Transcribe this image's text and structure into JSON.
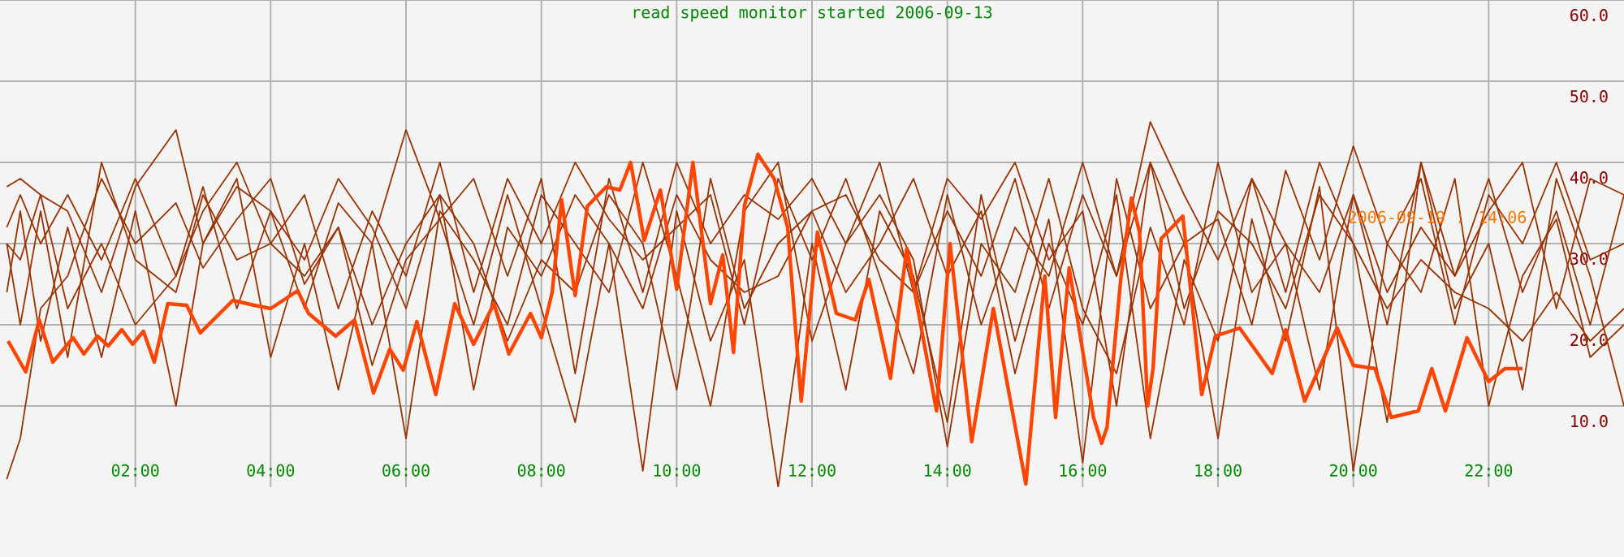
{
  "chart_data": {
    "type": "line",
    "title": "read speed monitor started 2006-09-13",
    "annotations": [
      "2006-09-19 : 14:06"
    ],
    "x": [
      0.1,
      0.3,
      0.6,
      1.0,
      1.5,
      2.0,
      2.6,
      3.0,
      3.5,
      4.0,
      4.5,
      5.0,
      5.5,
      6.0,
      6.5,
      7.0,
      7.5,
      8.0,
      8.5,
      9.0,
      9.5,
      10.0,
      10.5,
      11.0,
      11.5,
      12.0,
      12.5,
      13.0,
      13.5,
      14.0,
      14.5,
      15.0,
      15.5,
      16.0,
      16.5,
      17.0,
      17.5,
      18.0,
      18.5,
      19.0,
      19.5,
      20.0,
      20.5,
      21.0,
      21.5,
      22.0,
      22.5,
      23.0,
      23.5,
      24.0
    ],
    "series": [
      {
        "color": "#993300",
        "values": [
          1,
          6,
          22,
          26,
          38,
          30,
          35,
          27,
          33,
          38,
          25,
          32,
          15,
          28,
          33,
          20,
          36,
          22,
          8,
          30,
          2,
          34,
          18,
          28,
          0,
          30,
          12,
          34,
          26,
          8,
          36,
          18,
          33,
          3,
          38,
          22,
          30,
          6,
          33,
          18,
          37,
          2,
          30,
          24,
          38,
          10,
          26,
          33,
          16,
          20
        ]
      },
      {
        "color": "#993300",
        "values": [
          37,
          38,
          36,
          34,
          24,
          37,
          44,
          30,
          37,
          34,
          22,
          35,
          30,
          44,
          33,
          38,
          26,
          38,
          14,
          38,
          24,
          40,
          30,
          36,
          33,
          38,
          30,
          40,
          24,
          38,
          33,
          40,
          28,
          34,
          10,
          40,
          30,
          33,
          20,
          39,
          28,
          42,
          30,
          38,
          20,
          36,
          30,
          40,
          28,
          30
        ]
      },
      {
        "color": "#993300",
        "values": [
          30,
          20,
          34,
          16,
          40,
          28,
          24,
          36,
          28,
          30,
          36,
          22,
          34,
          26,
          40,
          24,
          38,
          30,
          40,
          33,
          28,
          32,
          36,
          20,
          38,
          28,
          38,
          26,
          14,
          36,
          20,
          32,
          26,
          40,
          26,
          45,
          36,
          28,
          38,
          24,
          40,
          30,
          8,
          40,
          26,
          34,
          40,
          22,
          38,
          36
        ]
      },
      {
        "color": "#993300",
        "values": [
          24,
          34,
          18,
          32,
          16,
          34,
          10,
          30,
          38,
          16,
          30,
          12,
          30,
          6,
          34,
          28,
          20,
          36,
          30,
          24,
          40,
          26,
          10,
          34,
          40,
          18,
          30,
          36,
          28,
          5,
          30,
          24,
          38,
          22,
          14,
          32,
          20,
          40,
          24,
          30,
          12,
          36,
          20,
          40,
          22,
          30,
          12,
          38,
          26,
          10
        ]
      },
      {
        "color": "#993300",
        "values": [
          30,
          28,
          36,
          22,
          30,
          20,
          26,
          37,
          22,
          34,
          28,
          38,
          32,
          22,
          36,
          30,
          18,
          28,
          24,
          36,
          30,
          12,
          38,
          22,
          30,
          34,
          24,
          30,
          38,
          26,
          34,
          14,
          30,
          20,
          36,
          6,
          28,
          18,
          38,
          30,
          24,
          36,
          24,
          32,
          26,
          38,
          24,
          34,
          20,
          36
        ]
      },
      {
        "color": "#993300",
        "values": [
          32,
          36,
          30,
          36,
          28,
          38,
          26,
          34,
          40,
          30,
          26,
          32,
          20,
          30,
          36,
          12,
          32,
          26,
          36,
          30,
          22,
          36,
          28,
          24,
          26,
          34,
          36,
          28,
          24,
          34,
          26,
          38,
          22,
          36,
          26,
          40,
          22,
          34,
          30,
          22,
          36,
          30,
          22,
          28,
          24,
          22,
          18,
          24,
          18,
          22
        ]
      },
      {
        "color": "#ff4500",
        "x": [
          0.12,
          0.38,
          0.58,
          0.78,
          1.08,
          1.24,
          1.44,
          1.6,
          1.8,
          1.96,
          2.12,
          2.28,
          2.48,
          2.76,
          2.96,
          3.44,
          3.76,
          4.0,
          4.4,
          4.56,
          4.96,
          5.24,
          5.52,
          5.76,
          5.96,
          6.16,
          6.44,
          6.72,
          7.0,
          7.3,
          7.52,
          7.84,
          8.0,
          8.16,
          8.3,
          8.5,
          8.68,
          8.96,
          9.16,
          9.32,
          9.52,
          9.76,
          10.0,
          10.24,
          10.5,
          10.68,
          10.84,
          11.0,
          11.2,
          11.44,
          11.64,
          11.84,
          12.08,
          12.36,
          12.64,
          12.84,
          13.16,
          13.4,
          13.84,
          14.04,
          14.36,
          14.68,
          15.16,
          15.44,
          15.6,
          15.8,
          16.16,
          16.28,
          16.36,
          16.56,
          16.72,
          16.84,
          16.96,
          17.04,
          17.16,
          17.48,
          17.76,
          17.96,
          18.32,
          18.8,
          19.0,
          19.28,
          19.76,
          20.0,
          20.32,
          20.56,
          20.96,
          21.16,
          21.36,
          21.68,
          22.0,
          22.24,
          22.5
        ],
        "values": [
          18,
          14.2,
          20.6,
          15.4,
          18.4,
          16.4,
          18.6,
          17.4,
          19.4,
          17.6,
          19.2,
          15.4,
          22.6,
          22.4,
          19,
          23,
          22.4,
          22,
          24.2,
          21.4,
          18.6,
          20.6,
          11.6,
          17,
          14.4,
          20.4,
          11.4,
          22.6,
          17.6,
          22.6,
          16.4,
          21.4,
          18.4,
          24,
          35.4,
          23.6,
          34.6,
          37,
          36.6,
          40,
          30.4,
          36.6,
          24.4,
          40,
          22.6,
          28.6,
          16.6,
          34.6,
          41,
          38,
          32,
          10.6,
          31.4,
          21.4,
          20.6,
          25.6,
          13.4,
          29.4,
          9.4,
          30,
          5.6,
          22,
          0.4,
          26,
          8.6,
          27,
          8.6,
          5.4,
          7.4,
          25.4,
          35.6,
          31.4,
          10,
          14.6,
          30.6,
          33.4,
          11.4,
          18.6,
          19.6,
          14,
          19.4,
          10.6,
          19.6,
          15,
          14.6,
          8.6,
          9.4,
          14.6,
          9.4,
          18.4,
          13,
          14.6,
          14.6
        ]
      }
    ],
    "xlim": [
      0,
      24
    ],
    "ylim": [
      0,
      60
    ],
    "xticks": [
      {
        "value": 2,
        "label": "02:00"
      },
      {
        "value": 4,
        "label": "04:00"
      },
      {
        "value": 6,
        "label": "06:00"
      },
      {
        "value": 8,
        "label": "08:00"
      },
      {
        "value": 10,
        "label": "10:00"
      },
      {
        "value": 12,
        "label": "12:00"
      },
      {
        "value": 14,
        "label": "14:00"
      },
      {
        "value": 16,
        "label": "16:00"
      },
      {
        "value": 18,
        "label": "18:00"
      },
      {
        "value": 20,
        "label": "20:00"
      },
      {
        "value": 22,
        "label": "22:00"
      }
    ],
    "yticks": [
      {
        "value": 10,
        "label": "10.0"
      },
      {
        "value": 20,
        "label": "20.0"
      },
      {
        "value": 30,
        "label": "30.0"
      },
      {
        "value": 40,
        "label": "40.0"
      },
      {
        "value": 50,
        "label": "50.0"
      },
      {
        "value": 60,
        "label": "60.0"
      }
    ],
    "grid": true
  }
}
